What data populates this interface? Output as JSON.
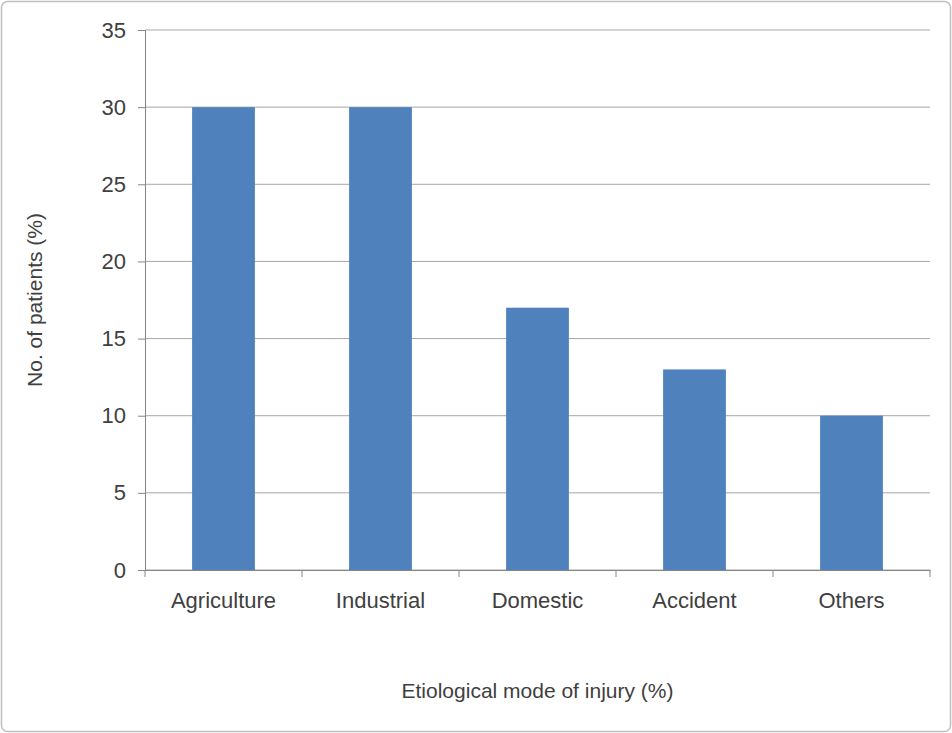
{
  "chart_data": {
    "type": "bar",
    "categories": [
      "Agriculture",
      "Industrial",
      "Domestic",
      "Accident",
      "Others"
    ],
    "values": [
      30,
      30,
      17,
      13,
      10
    ],
    "color": "#4f81bd",
    "ylim": [
      0,
      35
    ],
    "yticks": [
      0,
      5,
      10,
      15,
      20,
      25,
      30,
      35
    ],
    "grid": true,
    "xlabel": "Etiological mode of injury (%)",
    "ylabel": "No. of patients (%)"
  }
}
